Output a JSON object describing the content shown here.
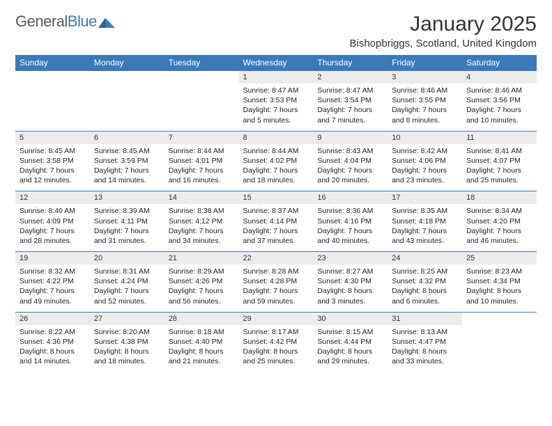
{
  "colors": {
    "brand_blue": "#3a7ab8",
    "header_bg": "#3a7ab8",
    "header_text": "#ffffff",
    "daynum_bg": "#ececec",
    "border": "#3a7ab8",
    "text": "#222222",
    "logo_gray": "#5a5a5a"
  },
  "logo": {
    "word1": "General",
    "word2": "Blue"
  },
  "title": "January 2025",
  "location": "Bishopbriggs, Scotland, United Kingdom",
  "day_headers": [
    "Sunday",
    "Monday",
    "Tuesday",
    "Wednesday",
    "Thursday",
    "Friday",
    "Saturday"
  ],
  "weeks": [
    [
      null,
      null,
      null,
      {
        "n": "1",
        "sr": "Sunrise: 8:47 AM",
        "ss": "Sunset: 3:53 PM",
        "dl": "Daylight: 7 hours and 5 minutes."
      },
      {
        "n": "2",
        "sr": "Sunrise: 8:47 AM",
        "ss": "Sunset: 3:54 PM",
        "dl": "Daylight: 7 hours and 7 minutes."
      },
      {
        "n": "3",
        "sr": "Sunrise: 8:46 AM",
        "ss": "Sunset: 3:55 PM",
        "dl": "Daylight: 7 hours and 8 minutes."
      },
      {
        "n": "4",
        "sr": "Sunrise: 8:46 AM",
        "ss": "Sunset: 3:56 PM",
        "dl": "Daylight: 7 hours and 10 minutes."
      }
    ],
    [
      {
        "n": "5",
        "sr": "Sunrise: 8:45 AM",
        "ss": "Sunset: 3:58 PM",
        "dl": "Daylight: 7 hours and 12 minutes."
      },
      {
        "n": "6",
        "sr": "Sunrise: 8:45 AM",
        "ss": "Sunset: 3:59 PM",
        "dl": "Daylight: 7 hours and 14 minutes."
      },
      {
        "n": "7",
        "sr": "Sunrise: 8:44 AM",
        "ss": "Sunset: 4:01 PM",
        "dl": "Daylight: 7 hours and 16 minutes."
      },
      {
        "n": "8",
        "sr": "Sunrise: 8:44 AM",
        "ss": "Sunset: 4:02 PM",
        "dl": "Daylight: 7 hours and 18 minutes."
      },
      {
        "n": "9",
        "sr": "Sunrise: 8:43 AM",
        "ss": "Sunset: 4:04 PM",
        "dl": "Daylight: 7 hours and 20 minutes."
      },
      {
        "n": "10",
        "sr": "Sunrise: 8:42 AM",
        "ss": "Sunset: 4:06 PM",
        "dl": "Daylight: 7 hours and 23 minutes."
      },
      {
        "n": "11",
        "sr": "Sunrise: 8:41 AM",
        "ss": "Sunset: 4:07 PM",
        "dl": "Daylight: 7 hours and 25 minutes."
      }
    ],
    [
      {
        "n": "12",
        "sr": "Sunrise: 8:40 AM",
        "ss": "Sunset: 4:09 PM",
        "dl": "Daylight: 7 hours and 28 minutes."
      },
      {
        "n": "13",
        "sr": "Sunrise: 8:39 AM",
        "ss": "Sunset: 4:11 PM",
        "dl": "Daylight: 7 hours and 31 minutes."
      },
      {
        "n": "14",
        "sr": "Sunrise: 8:38 AM",
        "ss": "Sunset: 4:12 PM",
        "dl": "Daylight: 7 hours and 34 minutes."
      },
      {
        "n": "15",
        "sr": "Sunrise: 8:37 AM",
        "ss": "Sunset: 4:14 PM",
        "dl": "Daylight: 7 hours and 37 minutes."
      },
      {
        "n": "16",
        "sr": "Sunrise: 8:36 AM",
        "ss": "Sunset: 4:16 PM",
        "dl": "Daylight: 7 hours and 40 minutes."
      },
      {
        "n": "17",
        "sr": "Sunrise: 8:35 AM",
        "ss": "Sunset: 4:18 PM",
        "dl": "Daylight: 7 hours and 43 minutes."
      },
      {
        "n": "18",
        "sr": "Sunrise: 8:34 AM",
        "ss": "Sunset: 4:20 PM",
        "dl": "Daylight: 7 hours and 46 minutes."
      }
    ],
    [
      {
        "n": "19",
        "sr": "Sunrise: 8:32 AM",
        "ss": "Sunset: 4:22 PM",
        "dl": "Daylight: 7 hours and 49 minutes."
      },
      {
        "n": "20",
        "sr": "Sunrise: 8:31 AM",
        "ss": "Sunset: 4:24 PM",
        "dl": "Daylight: 7 hours and 52 minutes."
      },
      {
        "n": "21",
        "sr": "Sunrise: 8:29 AM",
        "ss": "Sunset: 4:26 PM",
        "dl": "Daylight: 7 hours and 56 minutes."
      },
      {
        "n": "22",
        "sr": "Sunrise: 8:28 AM",
        "ss": "Sunset: 4:28 PM",
        "dl": "Daylight: 7 hours and 59 minutes."
      },
      {
        "n": "23",
        "sr": "Sunrise: 8:27 AM",
        "ss": "Sunset: 4:30 PM",
        "dl": "Daylight: 8 hours and 3 minutes."
      },
      {
        "n": "24",
        "sr": "Sunrise: 8:25 AM",
        "ss": "Sunset: 4:32 PM",
        "dl": "Daylight: 8 hours and 6 minutes."
      },
      {
        "n": "25",
        "sr": "Sunrise: 8:23 AM",
        "ss": "Sunset: 4:34 PM",
        "dl": "Daylight: 8 hours and 10 minutes."
      }
    ],
    [
      {
        "n": "26",
        "sr": "Sunrise: 8:22 AM",
        "ss": "Sunset: 4:36 PM",
        "dl": "Daylight: 8 hours and 14 minutes."
      },
      {
        "n": "27",
        "sr": "Sunrise: 8:20 AM",
        "ss": "Sunset: 4:38 PM",
        "dl": "Daylight: 8 hours and 18 minutes."
      },
      {
        "n": "28",
        "sr": "Sunrise: 8:18 AM",
        "ss": "Sunset: 4:40 PM",
        "dl": "Daylight: 8 hours and 21 minutes."
      },
      {
        "n": "29",
        "sr": "Sunrise: 8:17 AM",
        "ss": "Sunset: 4:42 PM",
        "dl": "Daylight: 8 hours and 25 minutes."
      },
      {
        "n": "30",
        "sr": "Sunrise: 8:15 AM",
        "ss": "Sunset: 4:44 PM",
        "dl": "Daylight: 8 hours and 29 minutes."
      },
      {
        "n": "31",
        "sr": "Sunrise: 8:13 AM",
        "ss": "Sunset: 4:47 PM",
        "dl": "Daylight: 8 hours and 33 minutes."
      },
      null
    ]
  ]
}
